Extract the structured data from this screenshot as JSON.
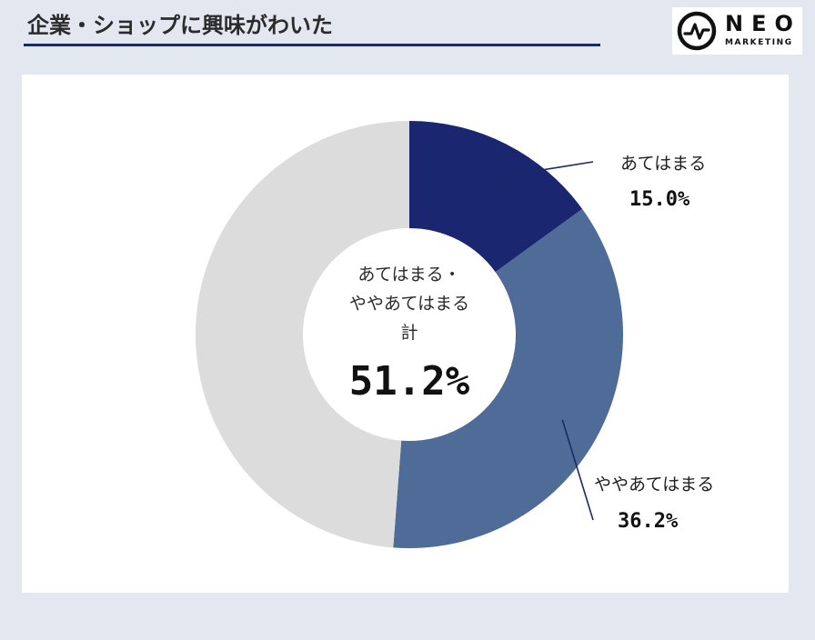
{
  "header": {
    "title": "企業・ショップに興味がわいた"
  },
  "logo": {
    "word": "NEO",
    "sub": "MARKETING"
  },
  "chart_data": {
    "type": "pie",
    "subtype": "donut",
    "categories": [
      "あてはまる",
      "ややあてはまる",
      ""
    ],
    "values": [
      15.0,
      36.2,
      48.8
    ],
    "value_labels": [
      "15.0%",
      "36.2%",
      ""
    ],
    "colors": [
      "#1b2670",
      "#4f6b97",
      "#dcdcdc"
    ],
    "center_label_lines": [
      "あてはまる・",
      "ややあてはまる",
      "計"
    ],
    "center_value": "51.2%",
    "start_angle_deg": 0,
    "direction": "clockwise"
  }
}
